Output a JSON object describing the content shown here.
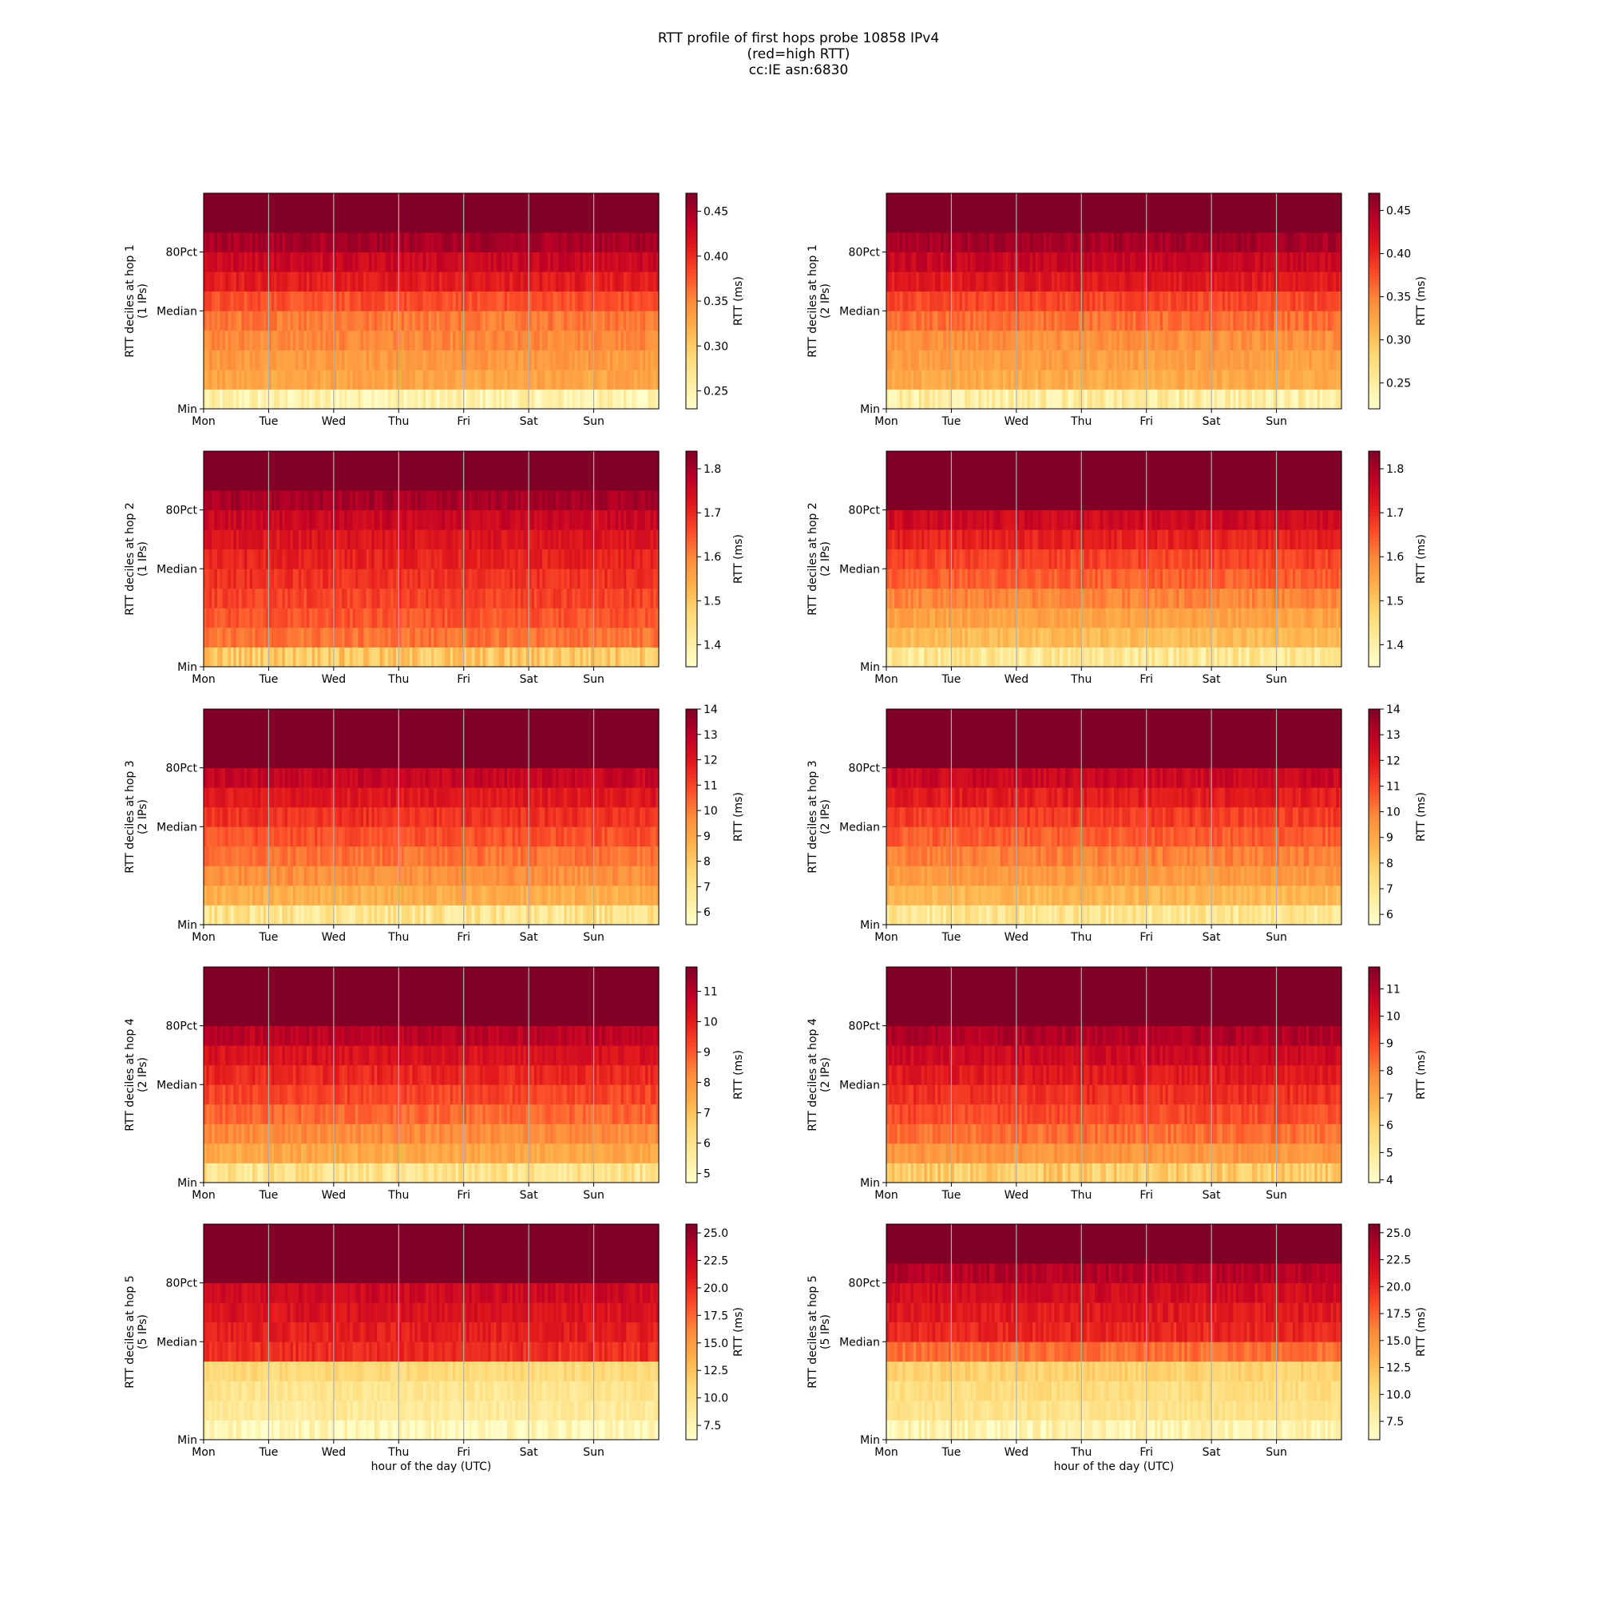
{
  "figure": {
    "title_lines": [
      "RTT profile of first hops probe 10858 IPv4",
      "(red=high RTT)",
      "cc:IE asn:6830"
    ]
  },
  "chart_data": [
    {
      "type": "heatmap",
      "panel": "hop 1 (1 IPs)",
      "ylabel": "RTT deciles at hop 1",
      "ylabel2": "(1 IPs)",
      "xlabel": "",
      "x_ticks": [
        "Mon",
        "Tue",
        "Wed",
        "Thu",
        "Fri",
        "Sat",
        "Sun"
      ],
      "y_ticks": [
        "Min",
        "Median",
        "80Pct"
      ],
      "colorbar_label": "RTT (ms)",
      "colorbar_ticks": [
        0.25,
        0.3,
        0.35,
        0.4,
        0.45
      ],
      "clim": [
        0.23,
        0.47
      ],
      "decile_rtt_ms": [
        0.25,
        0.33,
        0.34,
        0.35,
        0.36,
        0.38,
        0.41,
        0.43,
        0.45,
        0.47
      ],
      "vmax_region_from": 9,
      "colormap": "YlOrRd"
    },
    {
      "type": "heatmap",
      "panel": "hop 1 (2 IPs)",
      "ylabel": "RTT deciles at hop 1",
      "ylabel2": "(2 IPs)",
      "xlabel": "",
      "x_ticks": [
        "Mon",
        "Tue",
        "Wed",
        "Thu",
        "Fri",
        "Sat",
        "Sun"
      ],
      "y_ticks": [
        "Min",
        "Median",
        "80Pct"
      ],
      "colorbar_label": "RTT (ms)",
      "colorbar_ticks": [
        0.25,
        0.3,
        0.35,
        0.4,
        0.45
      ],
      "clim": [
        0.22,
        0.47
      ],
      "decile_rtt_ms": [
        0.25,
        0.32,
        0.33,
        0.34,
        0.36,
        0.38,
        0.41,
        0.43,
        0.45,
        0.47
      ],
      "vmax_region_from": 9,
      "colormap": "YlOrRd"
    },
    {
      "type": "heatmap",
      "panel": "hop 2 (1 IPs)",
      "ylabel": "RTT deciles at hop 2",
      "ylabel2": "(1 IPs)",
      "xlabel": "",
      "x_ticks": [
        "Mon",
        "Tue",
        "Wed",
        "Thu",
        "Fri",
        "Sat",
        "Sun"
      ],
      "y_ticks": [
        "Min",
        "Median",
        "80Pct"
      ],
      "colorbar_label": "RTT (ms)",
      "colorbar_ticks": [
        1.4,
        1.5,
        1.6,
        1.7,
        1.8
      ],
      "clim": [
        1.35,
        1.84
      ],
      "decile_rtt_ms": [
        1.5,
        1.62,
        1.65,
        1.67,
        1.69,
        1.71,
        1.73,
        1.76,
        1.8,
        1.84
      ],
      "vmax_region_from": 9,
      "colormap": "YlOrRd"
    },
    {
      "type": "heatmap",
      "panel": "hop 2 (2 IPs)",
      "ylabel": "RTT deciles at hop 2",
      "ylabel2": "(2 IPs)",
      "xlabel": "",
      "x_ticks": [
        "Mon",
        "Tue",
        "Wed",
        "Thu",
        "Fri",
        "Sat",
        "Sun"
      ],
      "y_ticks": [
        "Min",
        "Median",
        "80Pct"
      ],
      "colorbar_label": "RTT (ms)",
      "colorbar_ticks": [
        1.4,
        1.5,
        1.6,
        1.7,
        1.8
      ],
      "clim": [
        1.35,
        1.84
      ],
      "decile_rtt_ms": [
        1.43,
        1.52,
        1.56,
        1.6,
        1.64,
        1.67,
        1.71,
        1.75,
        1.84,
        1.84
      ],
      "vmax_region_from": 8,
      "colormap": "YlOrRd"
    },
    {
      "type": "heatmap",
      "panel": "hop 3 (2 IPs)",
      "ylabel": "RTT deciles at hop 3",
      "ylabel2": "(2 IPs)",
      "xlabel": "",
      "x_ticks": [
        "Mon",
        "Tue",
        "Wed",
        "Thu",
        "Fri",
        "Sat",
        "Sun"
      ],
      "y_ticks": [
        "Min",
        "Median",
        "80Pct"
      ],
      "colorbar_label": "RTT (ms)",
      "colorbar_ticks": [
        6,
        7,
        8,
        9,
        10,
        11,
        12,
        13,
        14
      ],
      "clim": [
        5.5,
        14
      ],
      "decile_rtt_ms": [
        7.0,
        8.8,
        9.6,
        10.2,
        10.8,
        11.4,
        12.0,
        12.7,
        14.0,
        14.0
      ],
      "vmax_region_from": 8,
      "colormap": "YlOrRd"
    },
    {
      "type": "heatmap",
      "panel": "hop 3 (2 IPs)",
      "ylabel": "RTT deciles at hop 3",
      "ylabel2": "(2 IPs)",
      "xlabel": "",
      "x_ticks": [
        "Mon",
        "Tue",
        "Wed",
        "Thu",
        "Fri",
        "Sat",
        "Sun"
      ],
      "y_ticks": [
        "Min",
        "Median",
        "80Pct"
      ],
      "colorbar_label": "RTT (ms)",
      "colorbar_ticks": [
        6,
        7,
        8,
        9,
        10,
        11,
        12,
        13,
        14
      ],
      "clim": [
        5.6,
        14
      ],
      "decile_rtt_ms": [
        7.0,
        8.6,
        9.4,
        10.0,
        10.6,
        11.2,
        11.9,
        12.6,
        14.0,
        14.0
      ],
      "vmax_region_from": 8,
      "colormap": "YlOrRd"
    },
    {
      "type": "heatmap",
      "panel": "hop 4 (2 IPs)",
      "ylabel": "RTT deciles at hop 4",
      "ylabel2": "(2 IPs)",
      "xlabel": "",
      "x_ticks": [
        "Mon",
        "Tue",
        "Wed",
        "Thu",
        "Fri",
        "Sat",
        "Sun"
      ],
      "y_ticks": [
        "Min",
        "Median",
        "80Pct"
      ],
      "colorbar_label": "RTT (ms)",
      "colorbar_ticks": [
        5,
        6,
        7,
        8,
        9,
        10,
        11
      ],
      "clim": [
        4.7,
        11.8
      ],
      "decile_rtt_ms": [
        6.0,
        7.6,
        8.2,
        8.8,
        9.3,
        9.8,
        10.3,
        10.9,
        11.8,
        11.8
      ],
      "vmax_region_from": 8,
      "colormap": "YlOrRd"
    },
    {
      "type": "heatmap",
      "panel": "hop 4 (2 IPs)",
      "ylabel": "RTT deciles at hop 4",
      "ylabel2": "(2 IPs)",
      "xlabel": "",
      "x_ticks": [
        "Mon",
        "Tue",
        "Wed",
        "Thu",
        "Fri",
        "Sat",
        "Sun"
      ],
      "y_ticks": [
        "Min",
        "Median",
        "80Pct"
      ],
      "colorbar_label": "RTT (ms)",
      "colorbar_ticks": [
        4,
        5,
        6,
        7,
        8,
        9,
        10,
        11
      ],
      "clim": [
        3.9,
        11.8
      ],
      "decile_rtt_ms": [
        6.2,
        7.6,
        8.3,
        8.9,
        9.4,
        9.9,
        10.4,
        11.0,
        11.8,
        11.8
      ],
      "vmax_region_from": 8,
      "colormap": "YlOrRd"
    },
    {
      "type": "heatmap",
      "panel": "hop 5 (5 IPs)",
      "ylabel": "RTT deciles at hop 5",
      "ylabel2": "(5 IPs)",
      "xlabel": "hour of the day (UTC)",
      "x_ticks": [
        "Mon",
        "Tue",
        "Wed",
        "Thu",
        "Fri",
        "Sat",
        "Sun"
      ],
      "y_ticks": [
        "Min",
        "Median",
        "80Pct"
      ],
      "colorbar_label": "RTT (ms)",
      "colorbar_ticks": [
        7.5,
        10.0,
        12.5,
        15.0,
        17.5,
        20.0,
        22.5,
        25.0
      ],
      "clim": [
        6.2,
        25.8
      ],
      "decile_rtt_ms": [
        7.2,
        9.0,
        9.6,
        10.8,
        20.0,
        20.8,
        21.5,
        22.3,
        25.8,
        25.8
      ],
      "vmax_region_from": 8,
      "colormap": "YlOrRd"
    },
    {
      "type": "heatmap",
      "panel": "hop 5 (5 IPs)",
      "ylabel": "RTT deciles at hop 5",
      "ylabel2": "(5 IPs)",
      "xlabel": "hour of the day (UTC)",
      "x_ticks": [
        "Mon",
        "Tue",
        "Wed",
        "Thu",
        "Fri",
        "Sat",
        "Sun"
      ],
      "y_ticks": [
        "Min",
        "Median",
        "80Pct"
      ],
      "colorbar_label": "RTT (ms)",
      "colorbar_ticks": [
        7.5,
        10.0,
        12.5,
        15.0,
        17.5,
        20.0,
        22.5,
        25.0
      ],
      "clim": [
        5.8,
        25.8
      ],
      "decile_rtt_ms": [
        7.3,
        9.5,
        10.2,
        11.2,
        17.0,
        20.2,
        21.0,
        22.0,
        23.5,
        25.8
      ],
      "vmax_region_from": 9,
      "colormap": "YlOrRd"
    }
  ]
}
